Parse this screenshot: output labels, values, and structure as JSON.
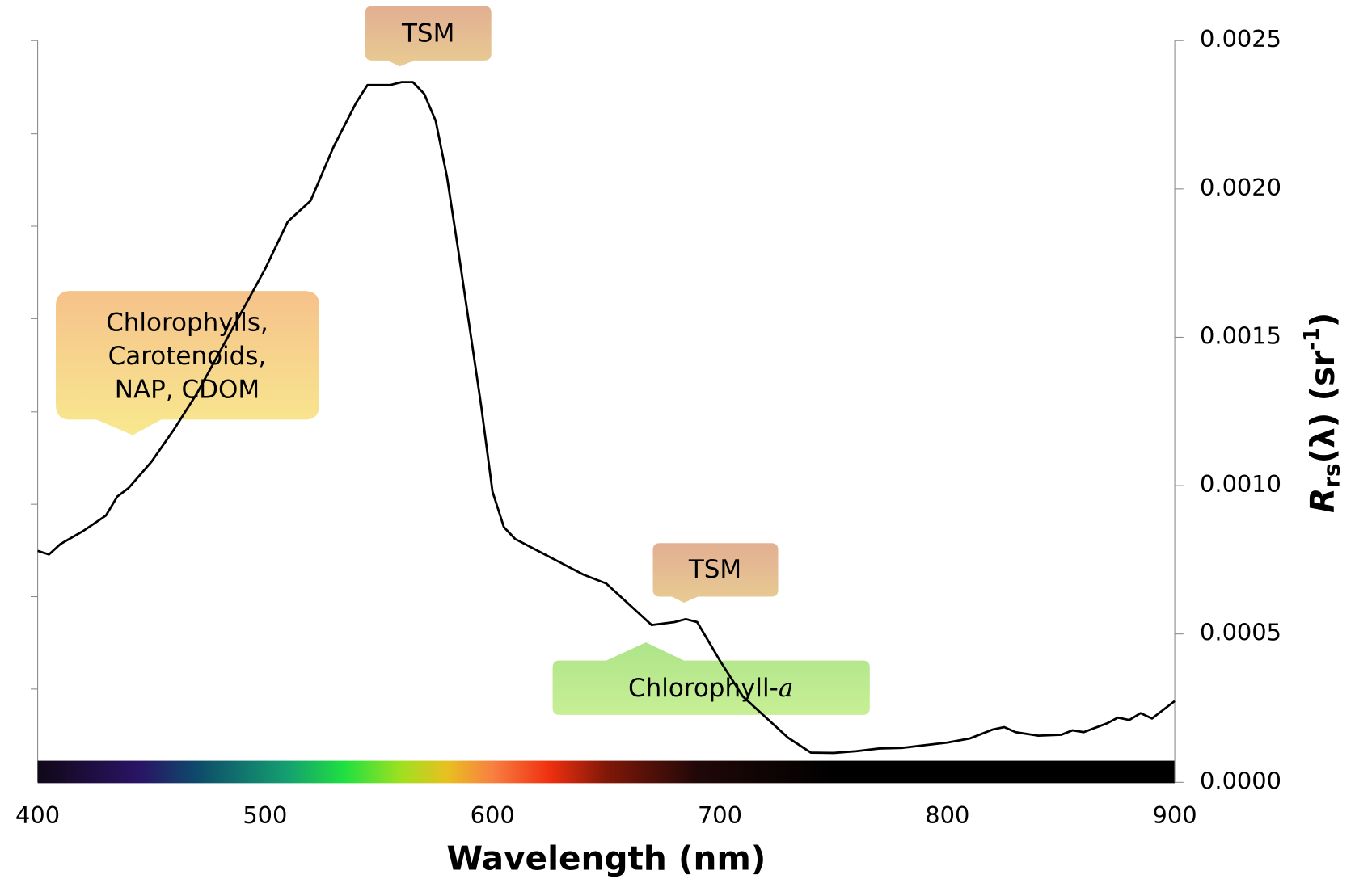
{
  "chart_data": {
    "type": "line",
    "x_label": "Wavelength (nm)",
    "y_label": [
      "R",
      "rs",
      "(λ) (sr",
      "-1",
      ")"
    ],
    "x": [
      400,
      405,
      410,
      420,
      430,
      435,
      440,
      450,
      460,
      470,
      480,
      490,
      500,
      510,
      520,
      530,
      540,
      545,
      550,
      555,
      560,
      565,
      570,
      575,
      580,
      585,
      590,
      595,
      600,
      605,
      610,
      620,
      630,
      640,
      650,
      660,
      670,
      680,
      685,
      690,
      700,
      710,
      720,
      730,
      740,
      750,
      760,
      770,
      780,
      790,
      800,
      810,
      820,
      825,
      830,
      840,
      850,
      855,
      860,
      870,
      875,
      880,
      885,
      890,
      900
    ],
    "series": [
      {
        "color": "#000000",
        "values": [
          0.00078,
          0.000768,
          0.000803,
          0.000847,
          0.000899,
          0.000963,
          0.000992,
          0.00108,
          0.00119,
          0.00131,
          0.00145,
          0.00159,
          0.00173,
          0.00189,
          0.00196,
          0.00214,
          0.00229,
          0.00235,
          0.00235,
          0.00235,
          0.00236,
          0.00236,
          0.00232,
          0.00223,
          0.00204,
          0.00179,
          0.00153,
          0.00127,
          0.00098,
          0.00086,
          0.00082,
          0.00078,
          0.00074,
          0.0007,
          0.00067,
          0.0006,
          0.00053,
          0.00054,
          0.00055,
          0.00054,
          0.00041,
          0.00029,
          0.00022,
          0.00015,
          0.0001,
          9.9e-05,
          0.000105,
          0.000114,
          0.000116,
          0.000125,
          0.000134,
          0.000148,
          0.000178,
          0.000186,
          0.000169,
          0.000157,
          0.00016,
          0.000175,
          0.000169,
          0.000198,
          0.000218,
          0.00021,
          0.000233,
          0.000215,
          0.000274
        ]
      }
    ],
    "xlim": [
      400,
      900
    ],
    "xticks": [
      400,
      500,
      600,
      700,
      800,
      900
    ],
    "ylim": [
      0,
      0.0025
    ],
    "yticks": [
      {
        "value": 0,
        "label": "0.0000"
      },
      {
        "value": 0.0005,
        "label": "0.0005"
      },
      {
        "value": 0.001,
        "label": "0.0010"
      },
      {
        "value": 0.0015,
        "label": "0.0015"
      },
      {
        "value": 0.002,
        "label": "0.0020"
      },
      {
        "value": 0.0025,
        "label": "0.0025"
      }
    ],
    "y_axis_side": "right",
    "annotations": {
      "tsm_1": "TSM",
      "tsm_2": "TSM",
      "pigments": [
        "Chlorophylls,",
        "Carotenoids,",
        "NAP, CDOM"
      ],
      "chl_a": [
        "Chlorophyll-",
        "a"
      ]
    }
  }
}
